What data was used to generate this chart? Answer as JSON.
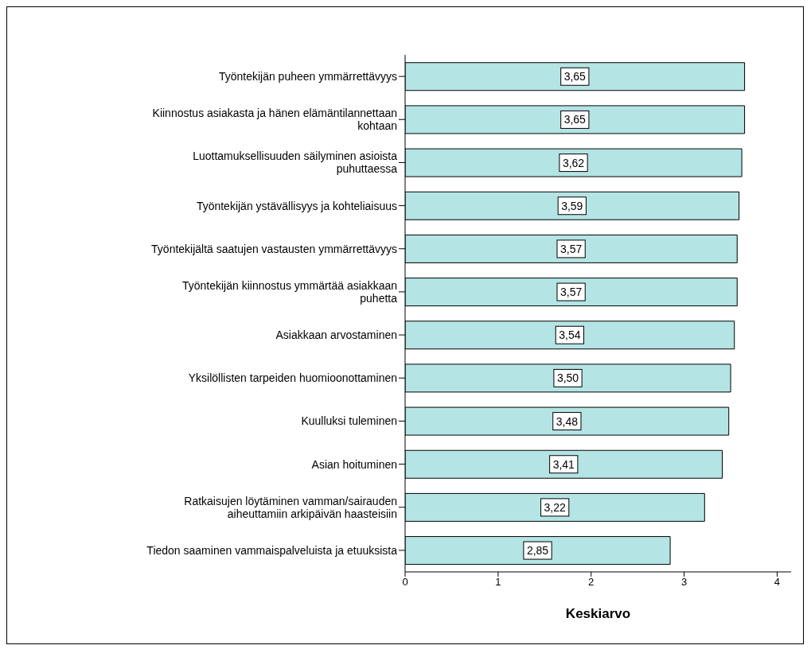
{
  "chart_data": {
    "type": "bar",
    "orientation": "horizontal",
    "xlabel": "Keskiarvo",
    "categories": [
      "Työntekijän puheen ymmärrettävyys",
      "Kiinnostus asiakasta ja hänen elämäntilannettaan kohtaan",
      "Luottamuksellisuuden säilyminen asioista puhuttaessa",
      "Työntekijän ystävällisyys ja kohteliaisuus",
      "Työntekijältä saatujen vastausten ymmärrettävyys",
      "Työntekijän kiinnostus ymmärtää asiakkaan puhetta",
      "Asiakkaan arvostaminen",
      "Yksilöllisten tarpeiden huomioonottaminen",
      "Kuulluksi tuleminen",
      "Asian hoituminen",
      "Ratkaisujen löytäminen vamman/sairauden aiheuttamiin arkipäivän haasteisiin",
      "Tiedon saaminen vammaispalveluista ja etuuksista"
    ],
    "values": [
      3.65,
      3.65,
      3.62,
      3.59,
      3.57,
      3.57,
      3.54,
      3.5,
      3.48,
      3.41,
      3.22,
      2.85
    ],
    "value_labels": [
      "3,65",
      "3,65",
      "3,62",
      "3,59",
      "3,57",
      "3,57",
      "3,54",
      "3,50",
      "3,48",
      "3,41",
      "3,22",
      "2,85"
    ],
    "color": "#b4e4e4",
    "xlim": [
      0,
      4.15
    ],
    "xticks": [
      0,
      1,
      2,
      3,
      4
    ]
  }
}
